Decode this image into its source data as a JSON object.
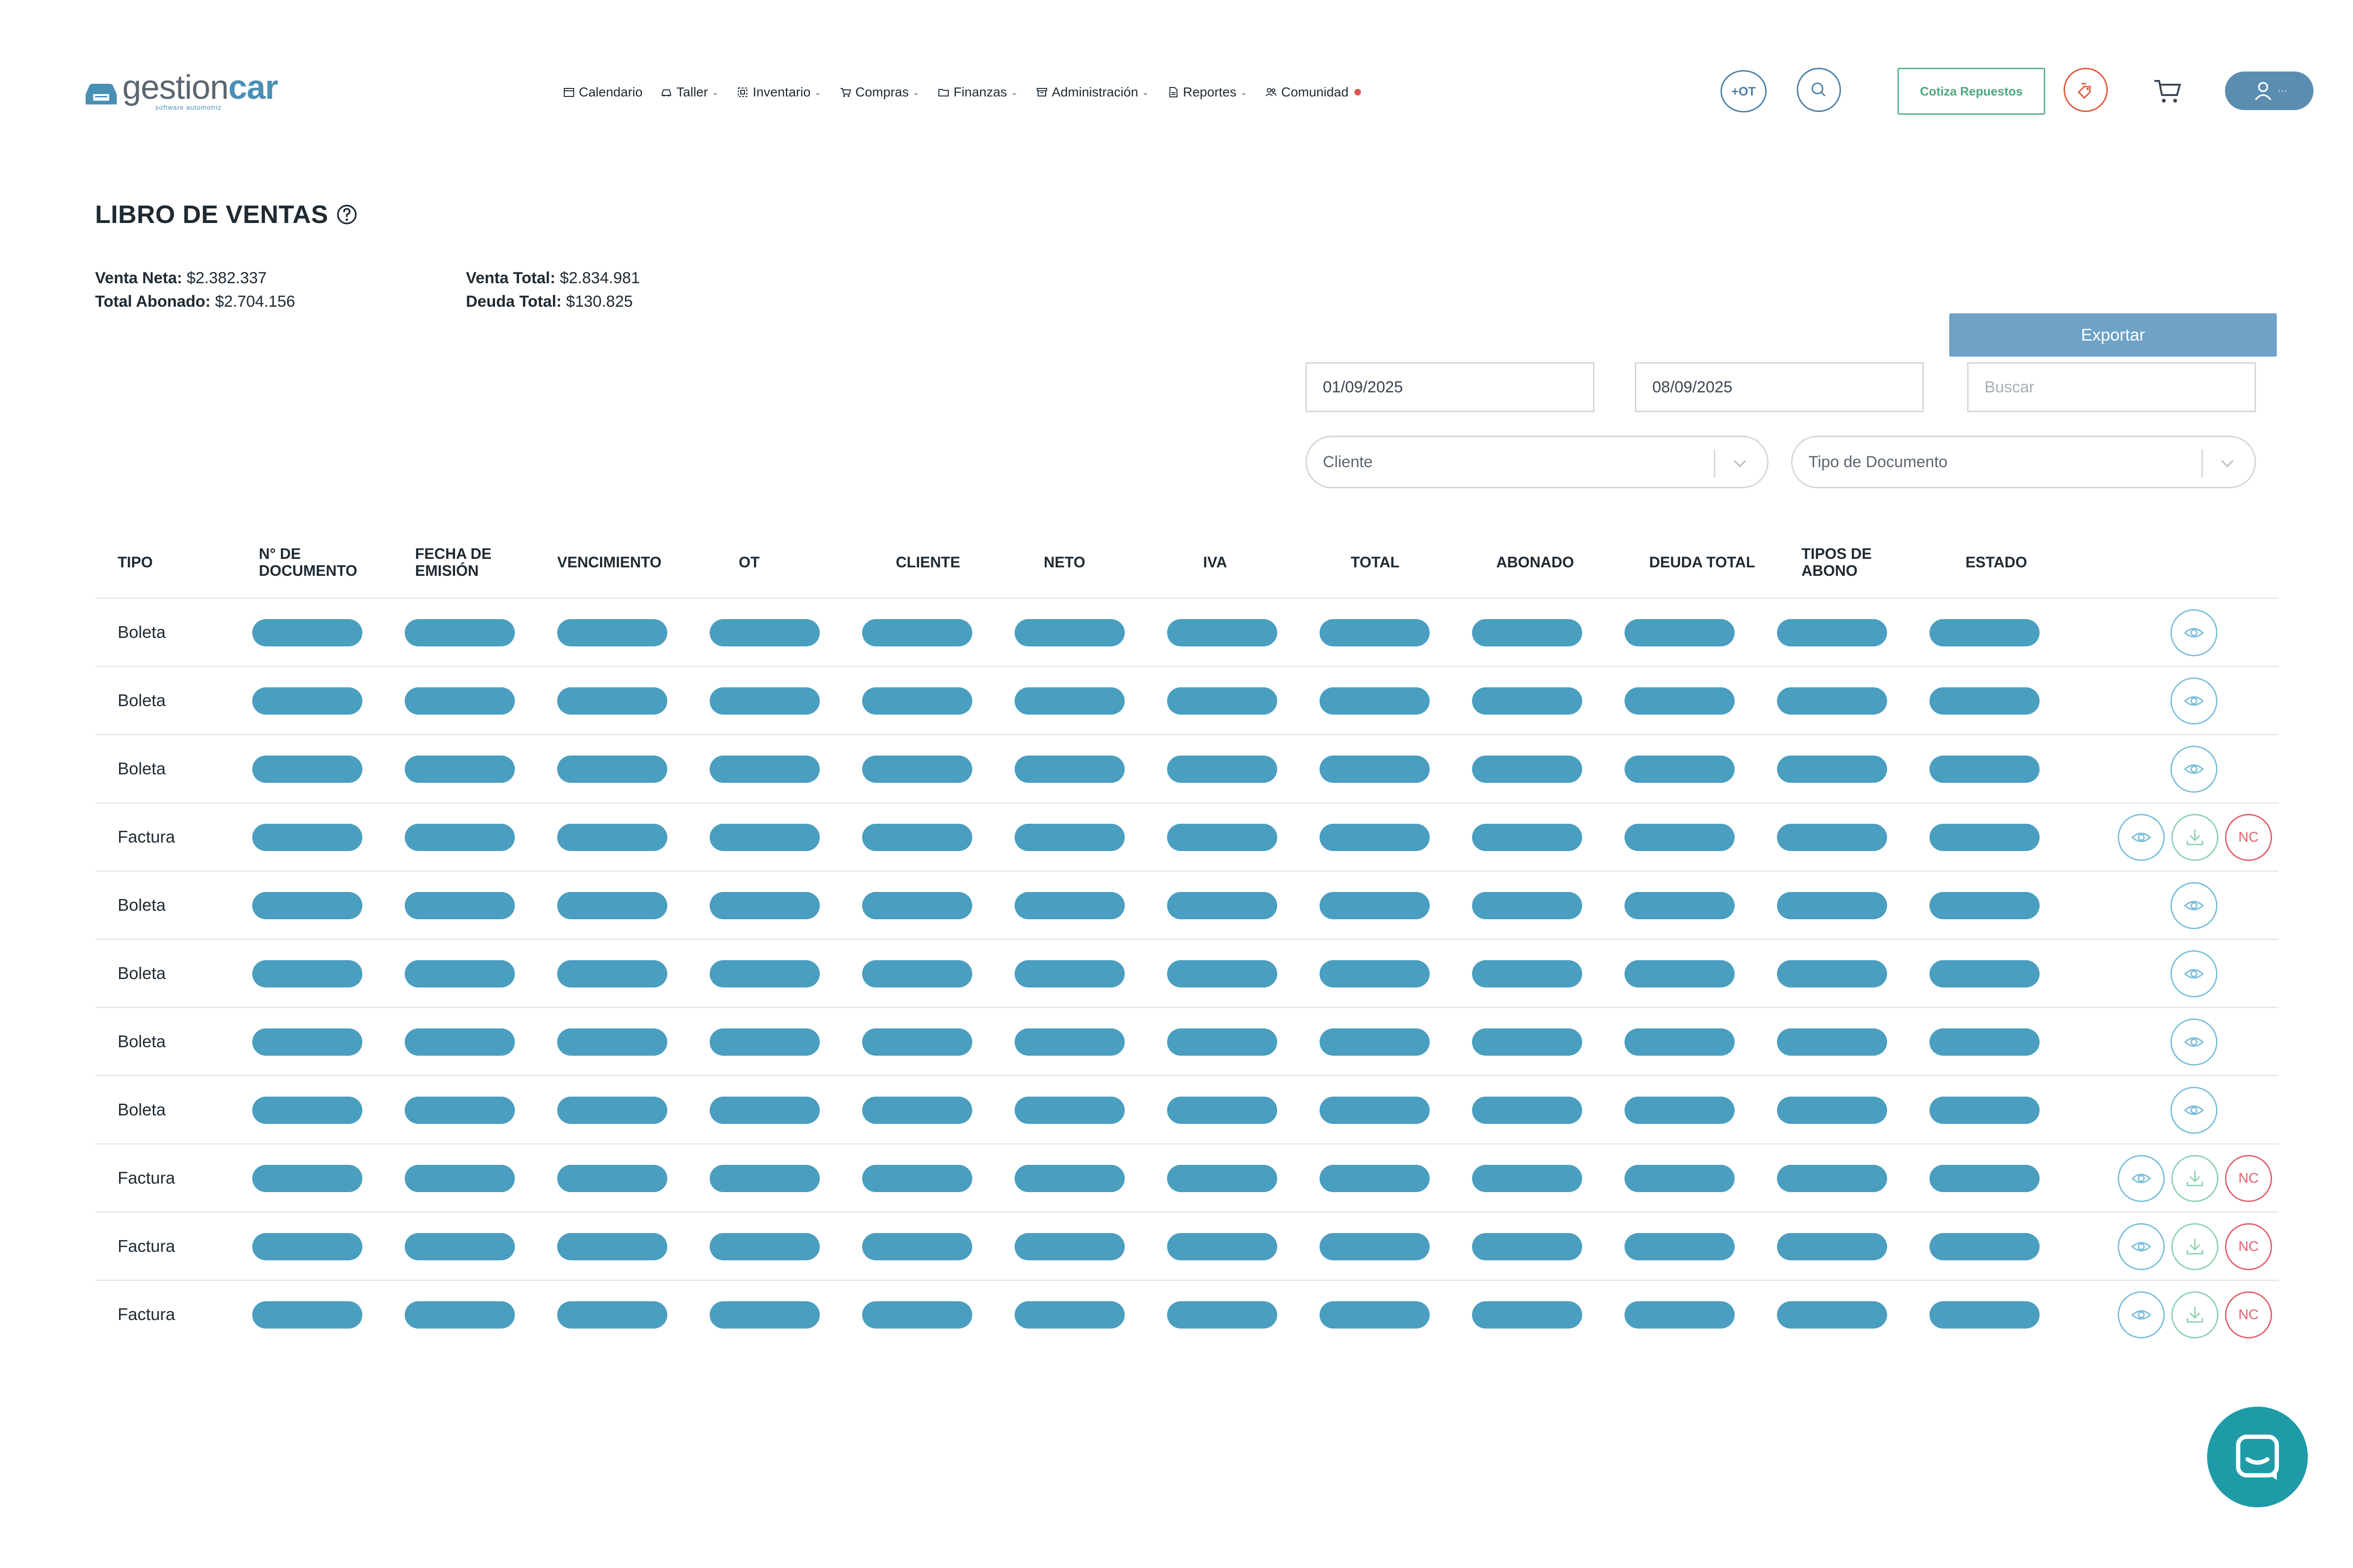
{
  "header": {
    "logo": {
      "word_main": "gestion",
      "word_accent": "car",
      "tagline": "software automotriz"
    },
    "nav": [
      {
        "label": "Calendario",
        "icon": "calendar-icon",
        "caret": ""
      },
      {
        "label": "Taller",
        "icon": "car-icon",
        "caret": "⌄"
      },
      {
        "label": "Inventario",
        "icon": "inventory-icon",
        "caret": "⌄"
      },
      {
        "label": "Compras",
        "icon": "cart-icon",
        "caret": "⌄"
      },
      {
        "label": "Finanzas",
        "icon": "folder-icon",
        "caret": "⌄"
      },
      {
        "label": "Administración",
        "icon": "archive-icon",
        "caret": "⌄"
      },
      {
        "label": "Reportes",
        "icon": "report-icon",
        "caret": "⌄"
      },
      {
        "label": "Comunidad",
        "icon": "community-icon",
        "caret": ""
      }
    ],
    "ot_button": "+OT",
    "cotiza_button": "Cotiza Repuestos",
    "user_menu_suffix": "···",
    "colors": {
      "primary": "#4a9ec0",
      "accent_green": "#4aa97b",
      "accent_red": "#e0573a"
    }
  },
  "page": {
    "title": "LIBRO DE VENTAS",
    "summary": {
      "venta_neta_label": "Venta Neta:",
      "venta_neta": "$2.382.337",
      "total_abonado_label": "Total Abonado:",
      "total_abonado": "$2.704.156",
      "venta_total_label": "Venta Total:",
      "venta_total": "$2.834.981",
      "deuda_total_label": "Deuda Total:",
      "deuda_total": "$130.825"
    }
  },
  "filters": {
    "export_label": "Exportar",
    "date_from": "01/09/2025",
    "date_to": "08/09/2025",
    "search_placeholder": "Buscar",
    "cliente_placeholder": "Cliente",
    "tipo_documento_placeholder": "Tipo de Documento"
  },
  "table": {
    "columns": [
      "TIPO",
      "N° DE DOCUMENTO",
      "FECHA DE EMISIÓN",
      "VENCIMIENTO",
      "OT",
      "CLIENTE",
      "NETO",
      "IVA",
      "TOTAL",
      "ABONADO",
      "DEUDA TOTAL",
      "TIPOS DE ABONO",
      "ESTADO"
    ],
    "rows": [
      {
        "tipo": "Boleta",
        "actions": [
          "view"
        ]
      },
      {
        "tipo": "Boleta",
        "actions": [
          "view"
        ]
      },
      {
        "tipo": "Boleta",
        "actions": [
          "view"
        ]
      },
      {
        "tipo": "Factura",
        "actions": [
          "view",
          "download",
          "nc"
        ]
      },
      {
        "tipo": "Boleta",
        "actions": [
          "view"
        ]
      },
      {
        "tipo": "Boleta",
        "actions": [
          "view"
        ]
      },
      {
        "tipo": "Boleta",
        "actions": [
          "view"
        ]
      },
      {
        "tipo": "Boleta",
        "actions": [
          "view"
        ]
      },
      {
        "tipo": "Factura",
        "actions": [
          "view",
          "download",
          "nc"
        ]
      },
      {
        "tipo": "Factura",
        "actions": [
          "view",
          "download",
          "nc"
        ]
      },
      {
        "tipo": "Factura",
        "actions": [
          "view",
          "download",
          "nc"
        ]
      }
    ],
    "nc_label": "NC"
  }
}
